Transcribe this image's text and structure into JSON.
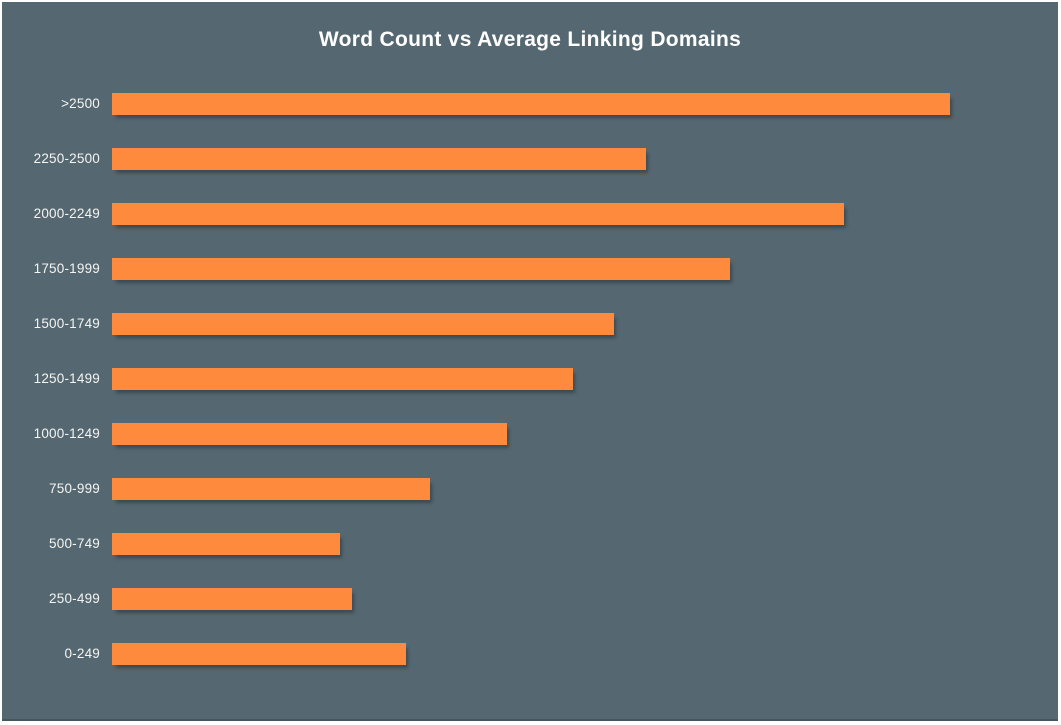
{
  "chart": {
    "title": "Word Count vs Average Linking Domains",
    "colors": {
      "background": "#556770",
      "bar": "#fd8a3d",
      "title_text": "#ffffff",
      "label_text": "#f4f5f3",
      "bottom_edge": "#47565e"
    }
  },
  "chart_data": {
    "type": "bar",
    "orientation": "horizontal",
    "title": "Word Count vs Average Linking Domains",
    "categories": [
      ">2500",
      "2250-2500",
      "2000-2249",
      "1750-1999",
      "1500-1749",
      "1250-1499",
      "1000-1249",
      "750-999",
      "500-749",
      "250-499",
      "0-249"
    ],
    "values_relative_pct_of_max": [
      100,
      63.7,
      87.3,
      73.7,
      59.9,
      55.0,
      47.1,
      37.9,
      27.2,
      28.6,
      35.1
    ],
    "xlabel": "",
    "ylabel": "",
    "xlim": [
      0,
      100
    ],
    "grid": false,
    "legend": "none",
    "axis_note": "No numeric x-axis, ticks, or gridlines are visible in the image; values are bar lengths measured relative to the longest bar (>2500 = 100)."
  }
}
